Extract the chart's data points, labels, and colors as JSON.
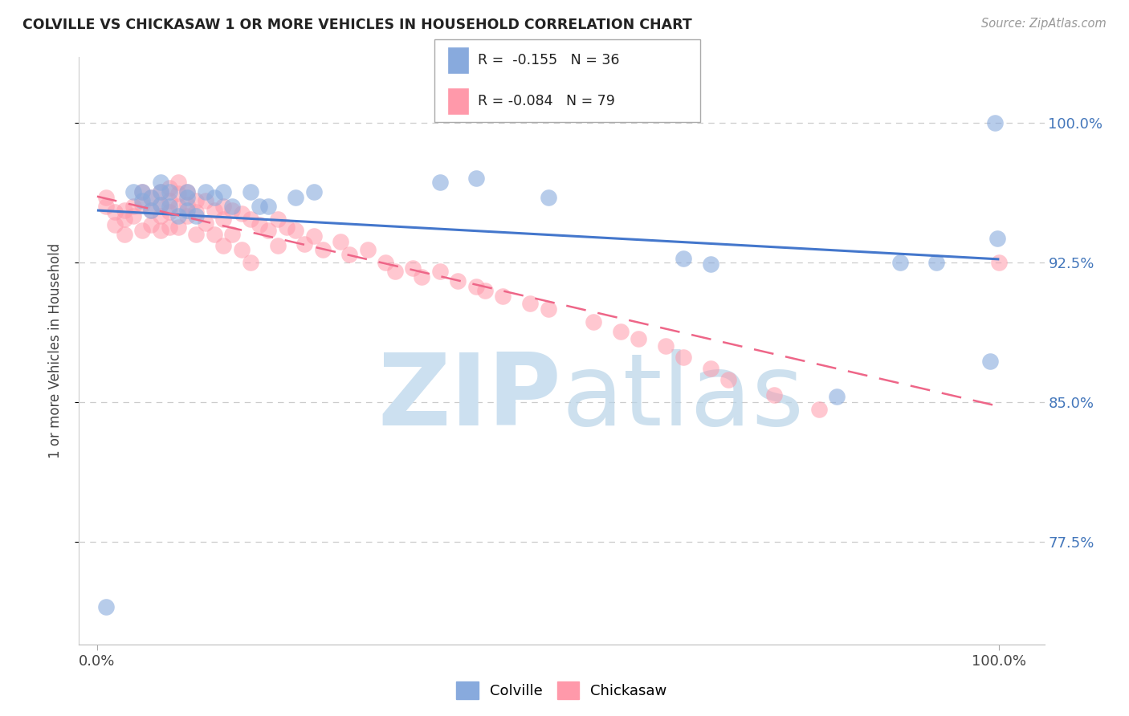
{
  "title": "COLVILLE VS CHICKASAW 1 OR MORE VEHICLES IN HOUSEHOLD CORRELATION CHART",
  "source": "Source: ZipAtlas.com",
  "ylabel": "1 or more Vehicles in Household",
  "colville_color": "#88AADD",
  "chickasaw_color": "#FF99AA",
  "colville_line_color": "#4477CC",
  "chickasaw_line_color": "#EE6688",
  "background_color": "#FFFFFF",
  "watermark_color": "#CCE0F0",
  "legend_R_colville": "-0.155",
  "legend_N_colville": "36",
  "legend_R_chickasaw": "-0.084",
  "legend_N_chickasaw": "79",
  "ytick_labels": [
    "77.5%",
    "85.0%",
    "92.5%",
    "100.0%"
  ],
  "ytick_values": [
    0.775,
    0.85,
    0.925,
    1.0
  ],
  "xtick_labels": [
    "0.0%",
    "100.0%"
  ],
  "xlim": [
    -0.02,
    1.05
  ],
  "ylim": [
    0.72,
    1.035
  ],
  "colville_x": [
    0.01,
    0.04,
    0.05,
    0.05,
    0.06,
    0.06,
    0.07,
    0.07,
    0.07,
    0.08,
    0.08,
    0.09,
    0.1,
    0.1,
    0.1,
    0.11,
    0.12,
    0.13,
    0.14,
    0.15,
    0.17,
    0.18,
    0.19,
    0.22,
    0.24,
    0.38,
    0.42,
    0.5,
    0.65,
    0.68,
    0.82,
    0.89,
    0.93,
    0.99,
    0.995,
    0.998
  ],
  "colville_y": [
    0.74,
    0.963,
    0.963,
    0.958,
    0.953,
    0.96,
    0.968,
    0.963,
    0.956,
    0.955,
    0.963,
    0.95,
    0.953,
    0.96,
    0.963,
    0.95,
    0.963,
    0.96,
    0.963,
    0.955,
    0.963,
    0.955,
    0.955,
    0.96,
    0.963,
    0.968,
    0.97,
    0.96,
    0.927,
    0.924,
    0.853,
    0.925,
    0.925,
    0.872,
    1.0,
    0.938
  ],
  "chickasaw_x": [
    0.01,
    0.01,
    0.02,
    0.02,
    0.03,
    0.03,
    0.03,
    0.04,
    0.04,
    0.05,
    0.05,
    0.05,
    0.06,
    0.06,
    0.06,
    0.07,
    0.07,
    0.07,
    0.07,
    0.08,
    0.08,
    0.08,
    0.08,
    0.09,
    0.09,
    0.09,
    0.09,
    0.1,
    0.1,
    0.1,
    0.11,
    0.11,
    0.11,
    0.12,
    0.12,
    0.13,
    0.13,
    0.14,
    0.14,
    0.14,
    0.15,
    0.15,
    0.16,
    0.16,
    0.17,
    0.17,
    0.18,
    0.19,
    0.2,
    0.2,
    0.21,
    0.22,
    0.23,
    0.24,
    0.25,
    0.27,
    0.28,
    0.3,
    0.32,
    0.33,
    0.35,
    0.36,
    0.38,
    0.4,
    0.42,
    0.43,
    0.45,
    0.48,
    0.5,
    0.55,
    0.58,
    0.6,
    0.63,
    0.65,
    0.68,
    0.7,
    0.75,
    0.8,
    1.0
  ],
  "chickasaw_y": [
    0.955,
    0.96,
    0.952,
    0.945,
    0.948,
    0.953,
    0.94,
    0.955,
    0.95,
    0.963,
    0.956,
    0.942,
    0.96,
    0.953,
    0.945,
    0.963,
    0.956,
    0.95,
    0.942,
    0.965,
    0.958,
    0.952,
    0.944,
    0.968,
    0.962,
    0.955,
    0.944,
    0.963,
    0.956,
    0.95,
    0.958,
    0.952,
    0.94,
    0.958,
    0.946,
    0.953,
    0.94,
    0.955,
    0.948,
    0.934,
    0.953,
    0.94,
    0.951,
    0.932,
    0.948,
    0.925,
    0.945,
    0.942,
    0.948,
    0.934,
    0.944,
    0.942,
    0.935,
    0.939,
    0.932,
    0.936,
    0.929,
    0.932,
    0.925,
    0.92,
    0.922,
    0.917,
    0.92,
    0.915,
    0.912,
    0.91,
    0.907,
    0.903,
    0.9,
    0.893,
    0.888,
    0.884,
    0.88,
    0.874,
    0.868,
    0.862,
    0.854,
    0.846,
    0.925
  ]
}
